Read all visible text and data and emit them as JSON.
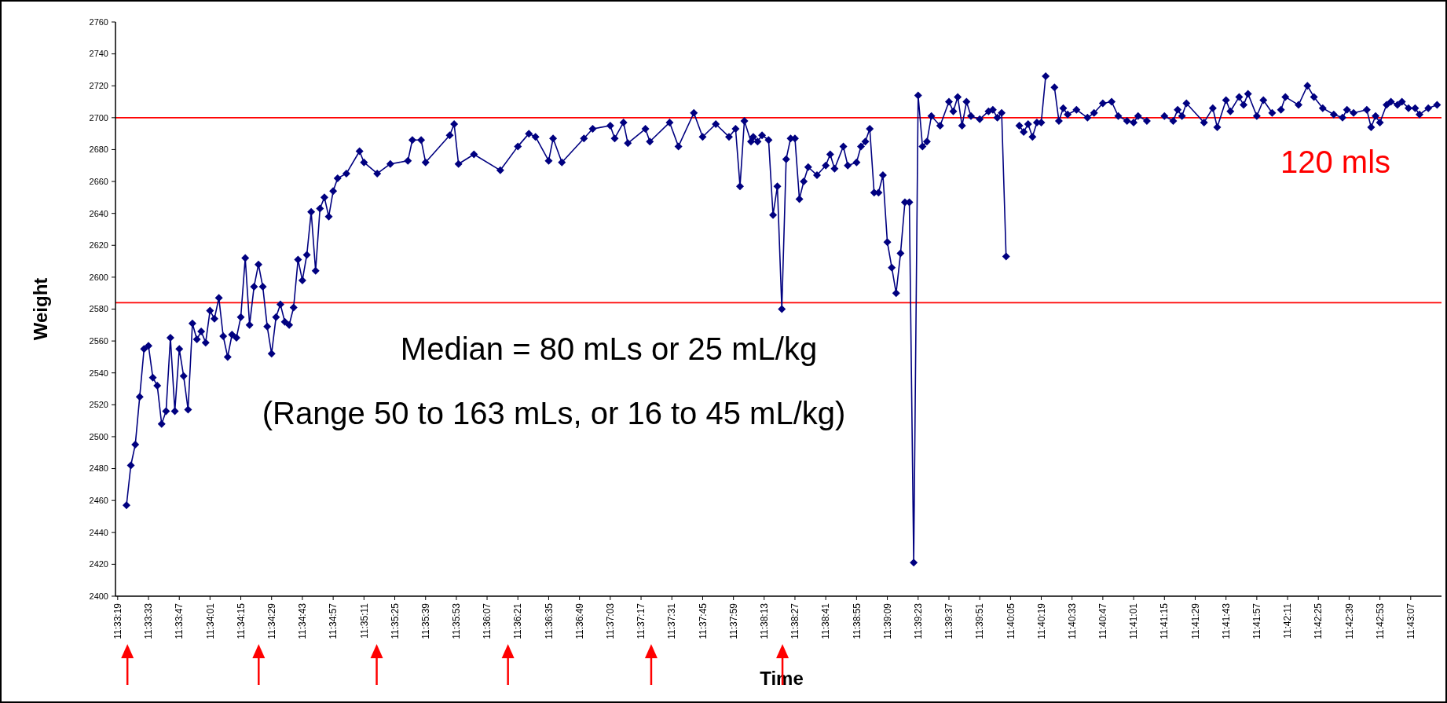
{
  "chart_data": {
    "type": "line",
    "xlabel": "Time",
    "ylabel": "Weight",
    "marker": "diamond",
    "grid": false,
    "annotations": [
      "Median = 80 mLs or 25 mL/kg",
      "(Range 50 to 163 mLs, or 16 to 45 mL/kg)"
    ],
    "ref_lines": [
      {
        "axis": "y",
        "value": 2700,
        "label": "120 mls",
        "color": "#ff0000"
      },
      {
        "axis": "y",
        "value": 2584,
        "color": "#ff0000"
      }
    ],
    "ylim": [
      2400,
      2760
    ],
    "yticks": [
      2400,
      2420,
      2440,
      2460,
      2480,
      2500,
      2520,
      2540,
      2560,
      2580,
      2600,
      2620,
      2640,
      2660,
      2680,
      2700,
      2720,
      2740,
      2760
    ],
    "xlim": [
      11.555,
      11.7225
    ],
    "xticks": [
      {
        "value": 11.55528,
        "label": "11:33:19"
      },
      {
        "value": 11.55917,
        "label": "11:33:33"
      },
      {
        "value": 11.56306,
        "label": "11:33:47"
      },
      {
        "value": 11.56694,
        "label": "11:34:01"
      },
      {
        "value": 11.57083,
        "label": "11:34:15"
      },
      {
        "value": 11.57472,
        "label": "11:34:29"
      },
      {
        "value": 11.57861,
        "label": "11:34:43"
      },
      {
        "value": 11.5825,
        "label": "11:34:57"
      },
      {
        "value": 11.58639,
        "label": "11:35:11"
      },
      {
        "value": 11.59028,
        "label": "11:35:25"
      },
      {
        "value": 11.59417,
        "label": "11:35:39"
      },
      {
        "value": 11.59806,
        "label": "11:35:53"
      },
      {
        "value": 11.60194,
        "label": "11:36:07"
      },
      {
        "value": 11.60583,
        "label": "11:36:21"
      },
      {
        "value": 11.60972,
        "label": "11:36:35"
      },
      {
        "value": 11.61361,
        "label": "11:36:49"
      },
      {
        "value": 11.6175,
        "label": "11:37:03"
      },
      {
        "value": 11.62139,
        "label": "11:37:17"
      },
      {
        "value": 11.62528,
        "label": "11:37:31"
      },
      {
        "value": 11.62917,
        "label": "11:37:45"
      },
      {
        "value": 11.63306,
        "label": "11:37:59"
      },
      {
        "value": 11.63694,
        "label": "11:38:13"
      },
      {
        "value": 11.64083,
        "label": "11:38:27"
      },
      {
        "value": 11.64472,
        "label": "11:38:41"
      },
      {
        "value": 11.64861,
        "label": "11:38:55"
      },
      {
        "value": 11.6525,
        "label": "11:39:09"
      },
      {
        "value": 11.65639,
        "label": "11:39:23"
      },
      {
        "value": 11.66028,
        "label": "11:39:37"
      },
      {
        "value": 11.66417,
        "label": "11:39:51"
      },
      {
        "value": 11.66806,
        "label": "11:40:05"
      },
      {
        "value": 11.67194,
        "label": "11:40:19"
      },
      {
        "value": 11.67583,
        "label": "11:40:33"
      },
      {
        "value": 11.67972,
        "label": "11:40:47"
      },
      {
        "value": 11.68361,
        "label": "11:41:01"
      },
      {
        "value": 11.6875,
        "label": "11:41:15"
      },
      {
        "value": 11.69139,
        "label": "11:41:29"
      },
      {
        "value": 11.69528,
        "label": "11:41:43"
      },
      {
        "value": 11.69917,
        "label": "11:41:57"
      },
      {
        "value": 11.70306,
        "label": "11:42:11"
      },
      {
        "value": 11.70694,
        "label": "11:42:25"
      },
      {
        "value": 11.71083,
        "label": "11:42:39"
      },
      {
        "value": 11.71472,
        "label": "11:42:53"
      },
      {
        "value": 11.71861,
        "label": "11:43:07"
      }
    ],
    "series": [
      {
        "color": "#000080",
        "x": [
          11.55639,
          11.55694,
          11.5575,
          11.55806,
          11.55861,
          11.55917,
          11.55972,
          11.56028,
          11.56083,
          11.56139,
          11.56194,
          11.5625,
          11.56306,
          11.56361,
          11.56417,
          11.56472,
          11.56528,
          11.56583,
          11.56639,
          11.56694,
          11.5675,
          11.56806,
          11.56861,
          11.56917,
          11.56972,
          11.57028,
          11.57083,
          11.57139,
          11.57194,
          11.5725,
          11.57306,
          11.57361,
          11.57417,
          11.57472,
          11.57528,
          11.57583,
          11.57639,
          11.57694,
          11.5775,
          11.57806,
          11.57861,
          11.57917,
          11.57972,
          11.58028,
          11.58083,
          11.58139,
          11.58194,
          11.5825,
          11.58306,
          11.58417,
          11.58583,
          11.58639,
          11.58806,
          11.58972,
          11.59194,
          11.5925,
          11.59361,
          11.59417,
          11.59722,
          11.59778,
          11.59833,
          11.60028,
          11.60361,
          11.60583,
          11.60722,
          11.60806,
          11.60972,
          11.61028,
          11.61139,
          11.61417,
          11.61528,
          11.6175,
          11.61806,
          11.61917,
          11.61972,
          11.62194,
          11.6225,
          11.625,
          11.62611,
          11.62806,
          11.62917,
          11.63083,
          11.6325,
          11.63333,
          11.63389,
          11.63444,
          11.63528,
          11.63556,
          11.63611,
          11.63667,
          11.6375,
          11.63806,
          11.63861,
          11.63917,
          11.63972,
          11.64028,
          11.64083,
          11.64139,
          11.64194,
          11.6425,
          11.64361,
          11.64472,
          11.64528,
          11.64583,
          11.64694,
          11.6475,
          11.64861,
          11.64917,
          11.64972,
          11.65028,
          11.65083,
          11.65139,
          11.65194,
          11.6525,
          11.65306,
          11.65361,
          11.65417,
          11.65472,
          11.65528,
          11.65583,
          11.65639,
          11.65694,
          11.6575,
          11.65806,
          11.65917,
          11.66028,
          11.66083,
          11.66139,
          11.66194,
          11.6625,
          11.66306,
          11.66417,
          11.66528,
          11.66583,
          11.66639,
          11.66694,
          11.6675,
          11.66806,
          11.66917,
          11.66972,
          11.67028,
          11.67083,
          11.67139,
          11.67194,
          11.6725,
          11.67306,
          11.67361,
          11.67417,
          11.67472,
          11.67528,
          11.67639,
          11.67778,
          11.67861,
          11.67972,
          11.68083,
          11.68167,
          11.68278,
          11.68361,
          11.68417,
          11.68528,
          11.68639,
          11.6875,
          11.68861,
          11.68917,
          11.68972,
          11.69028,
          11.6925,
          11.69361,
          11.69417,
          11.69528,
          11.69583,
          11.69694,
          11.6975,
          11.69806,
          11.69917,
          11.7,
          11.70111,
          11.70167,
          11.70222,
          11.70278,
          11.70444,
          11.70556,
          11.70639,
          11.7075,
          11.70889,
          11.71,
          11.71056,
          11.71139,
          11.71306,
          11.71361,
          11.71417,
          11.71472,
          11.71556,
          11.71611,
          11.71694,
          11.7175,
          11.71833,
          11.71917,
          11.71972,
          11.72083,
          11.72194
        ],
        "values": [
          2457,
          2482,
          2495,
          2525,
          2555,
          2557,
          2537,
          2532,
          2508,
          2516,
          2562,
          2516,
          2555,
          2538,
          2517,
          2571,
          2561,
          2566,
          2559,
          2579,
          2574,
          2587,
          2563,
          2550,
          2564,
          2562,
          2575,
          2612,
          2570,
          2594,
          2608,
          2594,
          2569,
          2552,
          2575,
          2583,
          2572,
          2570,
          2581,
          2611,
          2598,
          2614,
          2641,
          2604,
          2643,
          2650,
          2638,
          2654,
          2662,
          2665,
          2679,
          2672,
          2665,
          2671,
          2673,
          2686,
          2686,
          2672,
          2689,
          2696,
          2671,
          2677,
          2667,
          2682,
          2690,
          2688,
          2673,
          2687,
          2672,
          2687,
          2693,
          2695,
          2687,
          2697,
          2684,
          2693,
          2685,
          2697,
          2682,
          2703,
          2688,
          2696,
          2688,
          2693,
          2657,
          2698,
          2685,
          2688,
          2685,
          2689,
          2686,
          2639,
          2657,
          2580,
          2674,
          2687,
          2687,
          2649,
          2660,
          2669,
          2664,
          2670,
          2677,
          2668,
          2682,
          2670,
          2672,
          2682,
          2685,
          2693,
          2653,
          2653,
          2664,
          2622,
          2606,
          2590,
          2615,
          2647,
          2647,
          2421,
          2714,
          2682,
          2685,
          2701,
          2695,
          2710,
          2704,
          2713,
          2695,
          2710,
          2701,
          2699,
          2704,
          2705,
          2700,
          2703,
          2613,
          null,
          2695,
          2691,
          2696,
          2688,
          2697,
          2697,
          2726,
          null,
          2719,
          2698,
          2706,
          2702,
          2705,
          2700,
          2703,
          2709,
          2710,
          2701,
          2698,
          2697,
          2701,
          2698,
          null,
          2701,
          2698,
          2705,
          2701,
          2709,
          2697,
          2706,
          2694,
          2711,
          2704,
          2713,
          2708,
          2715,
          2701,
          2711,
          2703,
          null,
          2705,
          2713,
          2708,
          2720,
          2713,
          2706,
          2702,
          2700,
          2705,
          2703,
          2705,
          2694,
          2701,
          2697,
          2708,
          2710,
          2708,
          2710,
          2706,
          2706,
          2702,
          2706,
          2708
        ]
      }
    ]
  }
}
